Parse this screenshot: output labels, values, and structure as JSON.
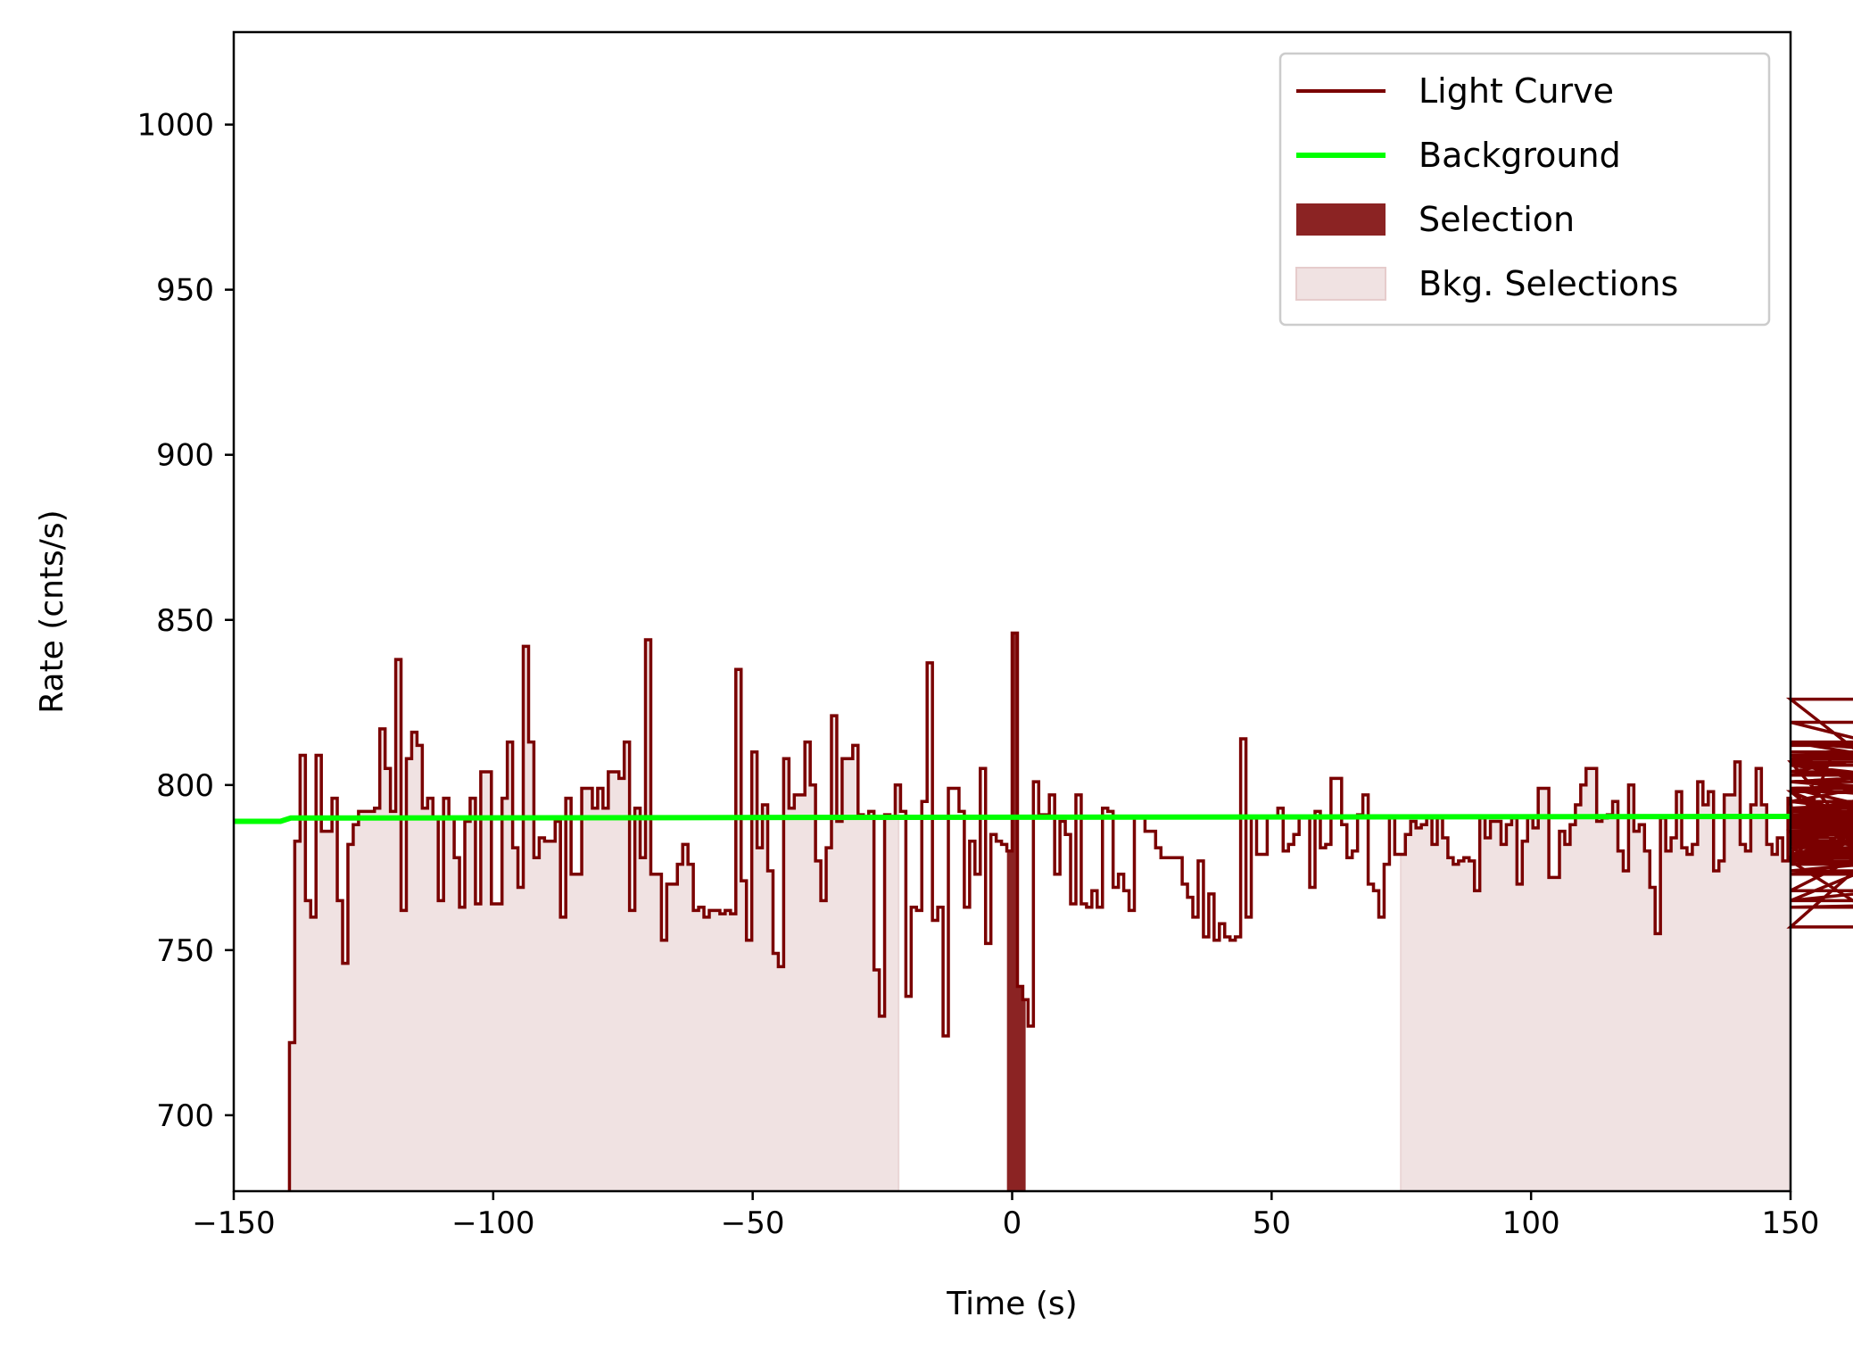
{
  "chart_data": {
    "type": "line",
    "title": "",
    "xlabel": "Time (s)",
    "ylabel": "Rate (cnts/s)",
    "xlim": [
      -150,
      150
    ],
    "ylim": [
      677,
      1028
    ],
    "xticks": [
      -150,
      -100,
      -50,
      0,
      50,
      100,
      150
    ],
    "xtick_labels": [
      "−150",
      "−100",
      "−50",
      "0",
      "50",
      "100",
      "150"
    ],
    "yticks": [
      700,
      750,
      800,
      850,
      900,
      950,
      1000
    ],
    "ytick_labels": [
      "700",
      "750",
      "800",
      "850",
      "900",
      "950",
      "1000"
    ],
    "grid": false,
    "legend_position": "top-right",
    "colors": {
      "light_curve": "#7a0000",
      "background": "#00ff00",
      "selection": "#8b2323",
      "bkg_selection": "#f0e2e2"
    },
    "light_curve": {
      "name": "Light Curve",
      "bin_width": 1.024,
      "start": -139.264,
      "values": [
        722,
        783,
        809,
        765,
        760,
        809,
        786,
        786,
        796,
        765,
        746,
        782,
        788,
        792,
        792,
        792,
        793,
        817,
        805,
        792,
        838,
        762,
        808,
        816,
        812,
        793,
        796,
        790,
        765,
        796,
        790,
        778,
        763,
        789,
        796,
        764,
        804,
        804,
        764,
        764,
        796,
        813,
        781,
        769,
        842,
        813,
        778,
        784,
        783,
        783,
        789,
        760,
        796,
        773,
        773,
        799,
        799,
        793,
        799,
        793,
        804,
        804,
        802,
        813,
        762,
        793,
        778,
        844,
        773,
        773,
        753,
        770,
        770,
        776,
        782,
        776,
        762,
        763,
        760,
        762,
        762,
        761,
        762,
        761,
        835,
        771,
        753,
        810,
        781,
        794,
        774,
        749,
        745,
        808,
        793,
        797,
        797,
        813,
        800,
        777,
        765,
        781,
        821,
        789,
        808,
        808,
        812,
        791,
        790,
        792,
        744,
        730,
        791,
        790,
        800,
        792,
        736,
        763,
        762,
        795,
        837,
        759,
        763,
        724,
        799,
        799,
        792,
        763,
        783,
        773,
        805,
        752,
        785,
        783,
        782,
        780,
        846,
        739,
        735,
        727,
        801,
        791,
        791,
        797,
        773,
        789,
        785,
        764,
        797,
        764,
        763,
        768,
        763,
        793,
        792,
        769,
        773,
        768,
        762,
        790,
        790,
        786,
        786,
        781,
        778,
        778,
        778,
        778,
        770,
        766,
        760,
        777,
        754,
        767,
        753,
        758,
        754,
        753,
        754,
        814,
        760,
        790,
        779,
        779,
        790,
        790,
        793,
        780,
        782,
        785,
        790,
        790,
        769,
        792,
        781,
        782,
        802,
        802,
        788,
        778,
        780,
        791,
        797,
        770,
        768,
        760,
        776,
        790,
        779,
        779,
        785,
        789,
        787,
        788,
        790,
        782,
        790,
        784,
        778,
        776,
        777,
        778,
        777,
        768,
        790,
        784,
        789,
        789,
        782,
        788,
        790,
        770,
        783,
        790,
        787,
        799,
        799,
        772,
        772,
        786,
        782,
        788,
        794,
        800,
        805,
        805,
        789,
        790,
        791,
        795,
        780,
        774,
        800,
        786,
        788,
        780,
        769,
        755,
        790,
        780,
        784,
        798,
        781,
        779,
        782,
        801,
        794,
        798,
        774,
        777,
        797,
        797,
        807,
        782,
        780,
        794,
        805,
        794,
        782,
        779,
        784,
        777,
        796,
        786,
        778,
        790,
        790,
        782,
        786,
        778,
        808,
        806,
        804,
        807,
        786,
        790,
        783,
        787,
        789,
        781,
        783,
        777,
        757,
        786,
        784,
        777,
        793,
        777,
        798,
        765,
        783,
        801,
        798,
        778,
        784,
        778,
        774,
        779,
        778,
        826,
        779,
        793,
        768,
        801,
        795,
        808,
        788,
        778,
        789,
        784,
        793,
        779,
        786,
        786,
        792,
        792,
        790,
        785,
        799,
        792,
        807,
        781,
        792,
        806,
        795,
        783,
        763,
        765,
        776,
        779,
        792,
        799,
        773,
        777,
        813,
        812,
        813,
        793,
        793,
        799,
        803,
        808,
        819,
        787,
        786,
        791,
        786,
        813,
        801,
        809,
        810,
        808,
        809,
        809
      ],
      "note_values_truncated": ""
    },
    "background": {
      "name": "Background",
      "x": [
        -150,
        -141,
        -139,
        150
      ],
      "y": [
        789,
        789,
        790,
        790.5
      ]
    },
    "selection": {
      "name": "Selection",
      "x_range": [
        -1,
        2.6
      ]
    },
    "bkg_selections": {
      "name": "Bkg. Selections",
      "ranges": [
        [
          -139.3,
          -21.9
        ],
        [
          74.9,
          150
        ]
      ]
    },
    "legend": [
      "Light Curve",
      "Background",
      "Selection",
      "Bkg. Selections"
    ]
  }
}
